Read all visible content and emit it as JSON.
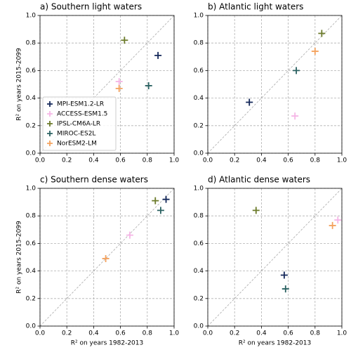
{
  "chart_data": [
    {
      "type": "scatter",
      "title": "a) Southern light waters",
      "ylabel": "R² on years 2015-2099",
      "xlim": [
        0,
        1
      ],
      "ylim": [
        0,
        1
      ],
      "xticks": [
        {
          "value": 0,
          "label": "0.0"
        },
        0.2,
        0.4,
        0.6,
        0.8,
        {
          "value": 1,
          "label": "1.0"
        }
      ],
      "yticks": [
        {
          "value": 0,
          "label": "0.0"
        },
        0.2,
        0.4,
        0.6,
        0.8,
        {
          "value": 1,
          "label": "1.0"
        }
      ],
      "grid": true,
      "legend": "lower left",
      "series": [
        {
          "name": "MPI-ESM1.2-LR",
          "color": "#14285a",
          "x": [
            0.88
          ],
          "values": [
            0.71
          ]
        },
        {
          "name": "ACCESS-ESM1.5",
          "color": "#f5b6e6",
          "x": [
            0.59
          ],
          "values": [
            0.52
          ]
        },
        {
          "name": "IPSL-CM6A-LR",
          "color": "#6b7a2a",
          "x": [
            0.63
          ],
          "values": [
            0.82
          ]
        },
        {
          "name": "MIROC-ES2L",
          "color": "#2b6262",
          "x": [
            0.81
          ],
          "values": [
            0.49
          ]
        },
        {
          "name": "NorESM2-LM",
          "color": "#f4a25e",
          "x": [
            0.59
          ],
          "values": [
            0.47
          ]
        }
      ]
    },
    {
      "type": "scatter",
      "title": "b) Atlantic light waters",
      "xlim": [
        0,
        1
      ],
      "ylim": [
        0,
        1
      ],
      "xticks": [
        {
          "value": 0,
          "label": "0.0"
        },
        0.2,
        0.4,
        0.6,
        0.8,
        {
          "value": 1,
          "label": "1.0"
        }
      ],
      "yticks": [
        {
          "value": 0,
          "label": "0.0"
        },
        0.2,
        0.4,
        0.6,
        0.8,
        {
          "value": 1,
          "label": "1.0"
        }
      ],
      "grid": true,
      "series": [
        {
          "color": "#14285a",
          "x": [
            0.31
          ],
          "values": [
            0.37
          ]
        },
        {
          "color": "#f5b6e6",
          "x": [
            0.65
          ],
          "values": [
            0.27
          ]
        },
        {
          "color": "#6b7a2a",
          "x": [
            0.85
          ],
          "values": [
            0.87
          ]
        },
        {
          "color": "#2b6262",
          "x": [
            0.66
          ],
          "values": [
            0.6
          ]
        },
        {
          "color": "#f4a25e",
          "x": [
            0.8
          ],
          "values": [
            0.74
          ]
        }
      ]
    },
    {
      "type": "scatter",
      "title": "c) Southern dense waters",
      "ylabel": "R² on years 2015-2099",
      "xlabel": "R² on years 1982-2013",
      "xlim": [
        0,
        1
      ],
      "ylim": [
        0,
        1
      ],
      "xticks": [
        {
          "value": 0,
          "label": "0.0"
        },
        0.2,
        0.4,
        0.6,
        0.8,
        {
          "value": 1,
          "label": "1.0"
        }
      ],
      "yticks": [
        {
          "value": 0,
          "label": "0.0"
        },
        0.2,
        0.4,
        0.6,
        0.8,
        {
          "value": 1,
          "label": "1.0"
        }
      ],
      "grid": true,
      "series": [
        {
          "color": "#14285a",
          "x": [
            0.94
          ],
          "values": [
            0.92
          ]
        },
        {
          "color": "#f5b6e6",
          "x": [
            0.67
          ],
          "values": [
            0.66
          ]
        },
        {
          "color": "#6b7a2a",
          "x": [
            0.86
          ],
          "values": [
            0.91
          ]
        },
        {
          "color": "#2b6262",
          "x": [
            0.9
          ],
          "values": [
            0.84
          ]
        },
        {
          "color": "#f4a25e",
          "x": [
            0.49
          ],
          "values": [
            0.49
          ]
        }
      ]
    },
    {
      "type": "scatter",
      "title": "d) Atlantic dense waters",
      "xlabel": "R² on years 1982-2013",
      "xlim": [
        0,
        1
      ],
      "ylim": [
        0,
        1
      ],
      "xticks": [
        {
          "value": 0,
          "label": "0.0"
        },
        0.2,
        0.4,
        0.6,
        0.8,
        {
          "value": 1,
          "label": "1.0"
        }
      ],
      "yticks": [
        {
          "value": 0,
          "label": "0.0"
        },
        0.2,
        0.4,
        0.6,
        0.8,
        {
          "value": 1,
          "label": "1.0"
        }
      ],
      "grid": true,
      "series": [
        {
          "color": "#14285a",
          "x": [
            0.57
          ],
          "values": [
            0.37
          ]
        },
        {
          "color": "#f5b6e6",
          "x": [
            0.97
          ],
          "values": [
            0.77
          ]
        },
        {
          "color": "#6b7a2a",
          "x": [
            0.36
          ],
          "values": [
            0.84
          ]
        },
        {
          "color": "#2b6262",
          "x": [
            0.58
          ],
          "values": [
            0.27
          ]
        },
        {
          "color": "#f4a25e",
          "x": [
            0.93
          ],
          "values": [
            0.73
          ]
        }
      ]
    }
  ]
}
